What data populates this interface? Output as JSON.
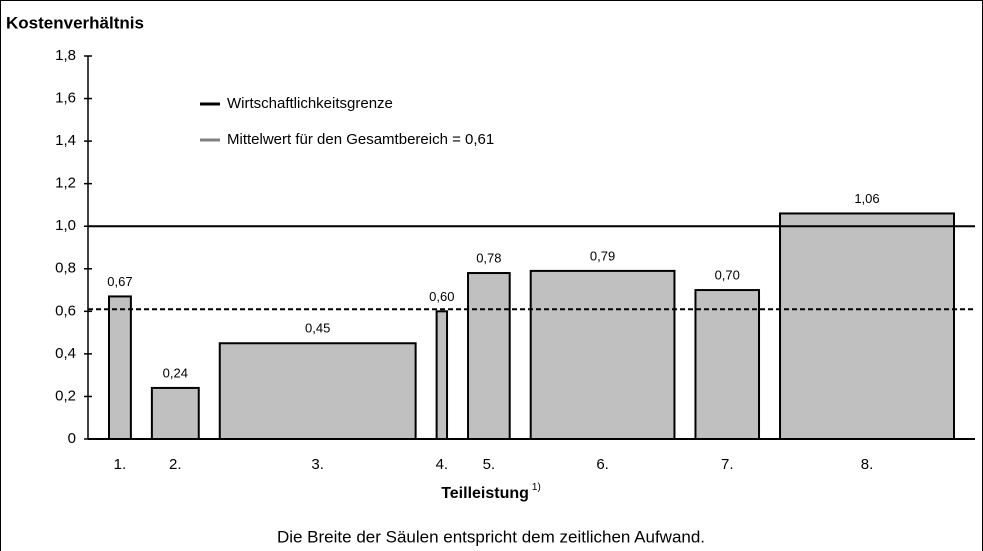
{
  "chart_data": {
    "type": "bar",
    "title": "Kostenverhältnis",
    "x_label": "Teilleistung",
    "x_label_note": "1)",
    "footnote": "Die Breite der Säulen entspricht dem zeitlichen Aufwand.",
    "categories": [
      "1.",
      "2.",
      "3.",
      "4.",
      "5.",
      "6.",
      "7.",
      "8."
    ],
    "values": [
      0.67,
      0.24,
      0.45,
      0.6,
      0.78,
      0.79,
      0.7,
      1.06
    ],
    "value_labels": [
      "0,67",
      "0,24",
      "0,45",
      "0,60",
      "0,78",
      "0,79",
      "0,70",
      "1,06"
    ],
    "widths": [
      21,
      45,
      188,
      10,
      40,
      138,
      61,
      167
    ],
    "color": "#c0c0c0",
    "ylim": [
      0,
      1.8
    ],
    "yticks": [
      0,
      {
        "value": 0.2,
        "label": "0,2"
      },
      {
        "value": 0.4,
        "label": "0,4"
      },
      {
        "value": 0.6,
        "label": "0,6"
      },
      {
        "value": 0.8,
        "label": "0,8"
      },
      {
        "value": 1.0,
        "label": "1,0"
      },
      {
        "value": 1.2,
        "label": "1,2"
      },
      {
        "value": 1.4,
        "label": "1,4"
      },
      {
        "value": 1.6,
        "label": "1,6"
      },
      {
        "value": 1.8,
        "label": "1,8"
      }
    ],
    "reference_lines": [
      {
        "name": "Wirtschaftlichkeitsgrenze",
        "value": 1.0,
        "color": "#000000",
        "legend_color": "#000000",
        "dashed": false
      },
      {
        "name": "Mittelwert für den Gesamtbereich = 0,61",
        "value": 0.61,
        "color": "#000000",
        "legend_color": "#808080",
        "dashed": true
      }
    ]
  }
}
